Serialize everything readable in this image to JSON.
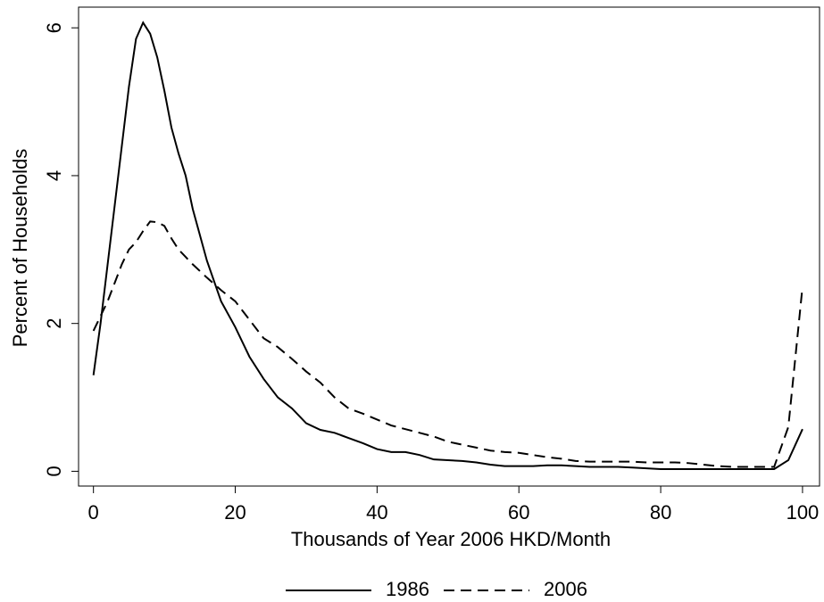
{
  "chart_data": {
    "type": "line",
    "x_label": "Thousands of Year 2006 HKD/Month",
    "y_label": "Percent of Households",
    "x": [
      0,
      1,
      2,
      3,
      4,
      5,
      6,
      7,
      8,
      9,
      10,
      11,
      12,
      13,
      14,
      16,
      18,
      20,
      22,
      24,
      26,
      28,
      30,
      32,
      34,
      36,
      38,
      40,
      42,
      44,
      46,
      48,
      50,
      52,
      54,
      56,
      58,
      60,
      62,
      64,
      66,
      68,
      70,
      72,
      74,
      76,
      78,
      80,
      82,
      84,
      86,
      88,
      90,
      92,
      94,
      96,
      98,
      100
    ],
    "series": [
      {
        "name": "1986",
        "color": "#000000",
        "dash": "solid",
        "values": [
          1.3,
          2.0,
          2.8,
          3.6,
          4.4,
          5.2,
          5.85,
          6.07,
          5.92,
          5.6,
          5.15,
          4.65,
          4.3,
          4.0,
          3.55,
          2.85,
          2.3,
          1.95,
          1.55,
          1.25,
          1.0,
          0.85,
          0.65,
          0.56,
          0.52,
          0.45,
          0.38,
          0.3,
          0.26,
          0.26,
          0.22,
          0.16,
          0.15,
          0.14,
          0.12,
          0.09,
          0.07,
          0.07,
          0.07,
          0.08,
          0.08,
          0.07,
          0.06,
          0.06,
          0.06,
          0.05,
          0.04,
          0.03,
          0.03,
          0.03,
          0.03,
          0.03,
          0.03,
          0.03,
          0.03,
          0.03,
          0.15,
          0.57
        ]
      },
      {
        "name": "2006",
        "color": "#000000",
        "dash": "dashed",
        "values": [
          1.9,
          2.1,
          2.3,
          2.55,
          2.8,
          3.0,
          3.1,
          3.25,
          3.38,
          3.37,
          3.32,
          3.15,
          3.0,
          2.9,
          2.8,
          2.62,
          2.45,
          2.3,
          2.05,
          1.8,
          1.68,
          1.52,
          1.35,
          1.2,
          1.0,
          0.85,
          0.78,
          0.7,
          0.62,
          0.57,
          0.52,
          0.47,
          0.4,
          0.36,
          0.32,
          0.28,
          0.26,
          0.25,
          0.22,
          0.19,
          0.17,
          0.14,
          0.13,
          0.13,
          0.13,
          0.13,
          0.12,
          0.12,
          0.12,
          0.11,
          0.09,
          0.07,
          0.06,
          0.06,
          0.06,
          0.06,
          0.6,
          2.5
        ]
      }
    ],
    "xlim": [
      -2.1,
      102.4
    ],
    "ylim": [
      -0.2,
      6.28
    ],
    "xticks": [
      0,
      20,
      40,
      60,
      80,
      100
    ],
    "yticks": [
      0,
      2,
      4,
      6
    ],
    "grid": false,
    "legend": "bottom"
  }
}
